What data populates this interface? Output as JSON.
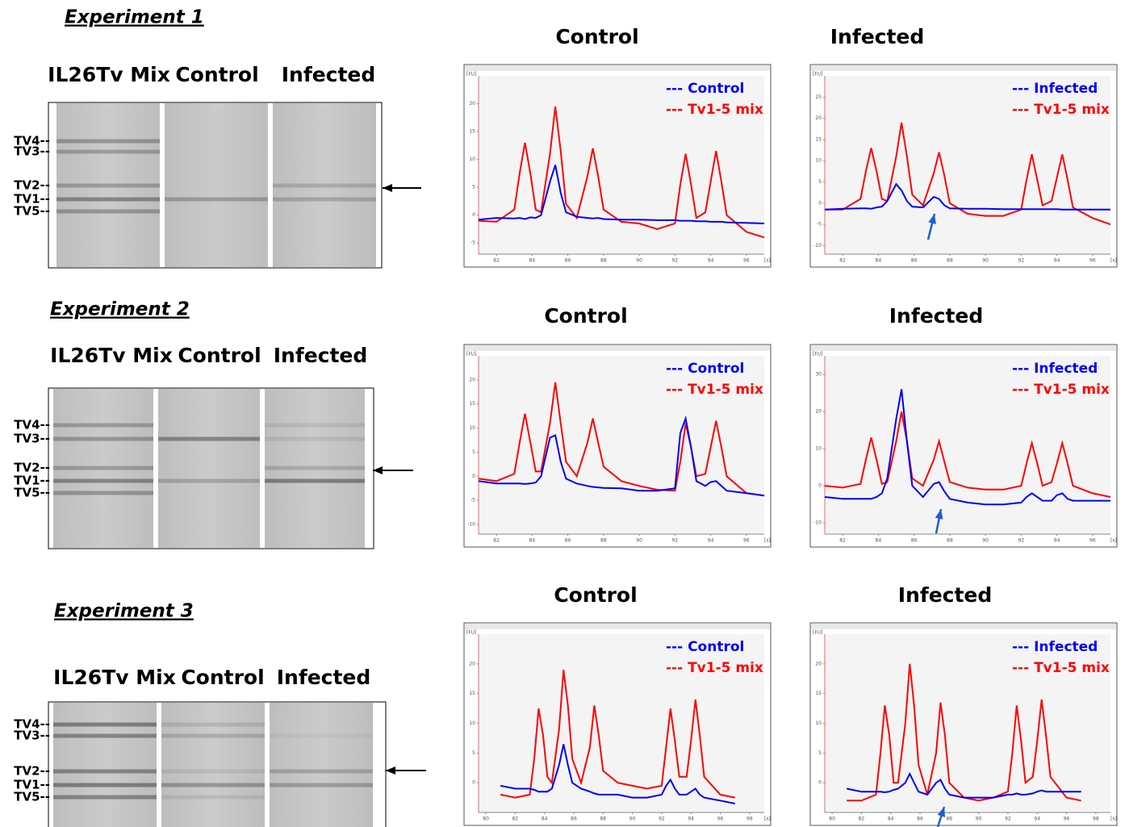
{
  "gels": [
    {
      "title": "Experiment 1",
      "lanes": [
        "IL26Tv Mix",
        "Control",
        "Infected"
      ],
      "band_labels": [
        "TV4--",
        "TV3--",
        "TV2--",
        "TV1--",
        "TV5--"
      ]
    },
    {
      "title": "Experiment 2",
      "lanes": [
        "IL26Tv Mix",
        "Control",
        "Infected"
      ],
      "band_labels": [
        "TV4--",
        "TV3--",
        "TV2--",
        "TV1--",
        "TV5--"
      ]
    },
    {
      "title": "Experiment 3",
      "lanes": [
        "IL26Tv Mix",
        "Control",
        "Infected"
      ],
      "band_labels": [
        "TV4--",
        "TV3--",
        "TV2--",
        "TV1--",
        "TV5--"
      ]
    }
  ],
  "chart_data": [
    {
      "type": "line",
      "title": "Control",
      "ylabel": "[FU]",
      "xlabel": "[s]",
      "xlim": [
        81,
        97
      ],
      "ylim": [
        -7,
        25
      ],
      "xticks": [
        82,
        84,
        86,
        88,
        90,
        92,
        94,
        96
      ],
      "yticks": [
        -5,
        0,
        5,
        10,
        15,
        20
      ],
      "x": [
        81,
        82,
        83,
        83.3,
        83.6,
        83.9,
        84.2,
        84.5,
        85.0,
        85.3,
        85.6,
        85.9,
        86.5,
        87.1,
        87.4,
        87.7,
        88.0,
        89,
        90,
        91,
        92,
        92.3,
        92.6,
        92.9,
        93.2,
        93.7,
        94.0,
        94.3,
        94.6,
        94.9,
        96,
        97
      ],
      "series": [
        {
          "name": "--- Control",
          "color": "#0000ff",
          "values": [
            -0.8,
            -0.5,
            -0.6,
            -0.5,
            -0.7,
            -0.4,
            -0.5,
            0,
            6,
            9,
            4,
            0.5,
            -0.3,
            -0.5,
            -0.6,
            -0.5,
            -0.7,
            -0.8,
            -0.8,
            -0.9,
            -0.9,
            -1,
            -1,
            -1,
            -1.1,
            -1.1,
            -1.2,
            -1.2,
            -1.2,
            -1.3,
            -1.4,
            -1.5
          ]
        },
        {
          "name": "--- Tv1-5 mix",
          "color": "#ff0000",
          "values": [
            -1,
            -1.2,
            1,
            7.5,
            13,
            7.5,
            1,
            0.5,
            11,
            19.5,
            11.5,
            2,
            -0.5,
            7,
            12,
            7,
            1,
            -1.2,
            -1.5,
            -2.5,
            -1.5,
            5.5,
            11,
            5.5,
            -0.5,
            0.5,
            6,
            11.5,
            6,
            0,
            -3,
            -4
          ]
        }
      ]
    },
    {
      "type": "line",
      "title": "Infected",
      "ylabel": "[FU]",
      "xlabel": "[s]",
      "xlim": [
        81,
        97
      ],
      "ylim": [
        -12,
        30
      ],
      "xticks": [
        82,
        84,
        86,
        88,
        90,
        92,
        94,
        96
      ],
      "yticks": [
        -10,
        -5,
        0,
        5,
        10,
        15,
        20,
        25
      ],
      "x": [
        81,
        82,
        83,
        83.3,
        83.6,
        83.9,
        84.2,
        84.5,
        85.0,
        85.3,
        85.6,
        85.9,
        86.5,
        87.1,
        87.4,
        87.7,
        88.0,
        89,
        90,
        91,
        92,
        92.3,
        92.6,
        92.9,
        93.2,
        93.7,
        94.0,
        94.3,
        94.6,
        94.9,
        96,
        97
      ],
      "series": [
        {
          "name": "--- Infected",
          "color": "#0000ff",
          "values": [
            -1.5,
            -1.3,
            -1.2,
            -1.2,
            -1.3,
            -1,
            -0.8,
            0.5,
            4.5,
            3,
            0.5,
            -0.8,
            -1,
            1.5,
            1,
            -0.5,
            -1.2,
            -1.3,
            -1.3,
            -1.4,
            -1.4,
            -1.4,
            -1.4,
            -1.4,
            -1.4,
            -1.4,
            -1.4,
            -1.5,
            -1.5,
            -1.5,
            -1.5,
            -1.5
          ]
        },
        {
          "name": "--- Tv1-5 mix",
          "color": "#ff0000",
          "values": [
            -1.5,
            -1.5,
            1,
            7.5,
            13,
            7.5,
            1,
            0.5,
            11,
            19,
            11,
            2,
            -0.5,
            7,
            12,
            6.5,
            0,
            -2.5,
            -3,
            -3,
            -1.5,
            5.5,
            11.5,
            5.5,
            -0.5,
            0.5,
            6,
            11.5,
            5.5,
            -1,
            -3.5,
            -5
          ]
        }
      ]
    },
    {
      "type": "line",
      "title": "Control",
      "ylabel": "[FU]",
      "xlabel": "[s]",
      "xlim": [
        81,
        97
      ],
      "ylim": [
        -12,
        25
      ],
      "xticks": [
        82,
        84,
        86,
        88,
        90,
        92,
        94,
        96
      ],
      "yticks": [
        -10,
        -5,
        0,
        5,
        10,
        15,
        20
      ],
      "x": [
        81,
        82,
        83,
        83.3,
        83.6,
        83.9,
        84.2,
        84.5,
        85.0,
        85.3,
        85.6,
        85.9,
        86.5,
        87.1,
        87.4,
        87.7,
        88.0,
        89,
        90,
        91,
        92,
        92.3,
        92.6,
        92.9,
        93.2,
        93.7,
        94.0,
        94.3,
        94.6,
        94.9,
        96,
        97
      ],
      "series": [
        {
          "name": "--- Control",
          "color": "#0000ff",
          "values": [
            -1,
            -1.5,
            -1.5,
            -1.5,
            -1.6,
            -1.5,
            -1.3,
            0,
            8,
            8.5,
            3,
            -0.5,
            -1.5,
            -2,
            -2.2,
            -2.3,
            -2.4,
            -2.5,
            -3,
            -3,
            -2.5,
            9,
            12,
            6,
            -1,
            -2,
            -1.2,
            -1,
            -2,
            -3,
            -3.5,
            -4
          ]
        },
        {
          "name": "--- Tv1-5 mix",
          "color": "#ff0000",
          "values": [
            -0.5,
            -1,
            0.5,
            7,
            13,
            7,
            1,
            1,
            11,
            19.5,
            11,
            3,
            0,
            7,
            12,
            7,
            2,
            -1,
            -2,
            -2.8,
            -3,
            3,
            11,
            6,
            0,
            0.5,
            6,
            11.5,
            6,
            0,
            -3.5,
            -4
          ]
        }
      ]
    },
    {
      "type": "line",
      "title": "Infected",
      "ylabel": "[FU]",
      "xlabel": "[s]",
      "xlim": [
        81,
        97
      ],
      "ylim": [
        -13,
        35
      ],
      "xticks": [
        82,
        84,
        86,
        88,
        90,
        92,
        94,
        96
      ],
      "yticks": [
        -10,
        0,
        10,
        20,
        30
      ],
      "x": [
        81,
        82,
        83,
        83.3,
        83.6,
        83.9,
        84.2,
        84.5,
        85.0,
        85.3,
        85.6,
        85.9,
        86.5,
        87.1,
        87.4,
        87.7,
        88.0,
        89,
        90,
        91,
        92,
        92.3,
        92.6,
        92.9,
        93.2,
        93.7,
        94.0,
        94.3,
        94.6,
        94.9,
        96,
        97
      ],
      "series": [
        {
          "name": "--- Infected",
          "color": "#0000ff",
          "values": [
            -3,
            -3.5,
            -3.5,
            -3.5,
            -3.5,
            -3,
            -2,
            2,
            18,
            26,
            12,
            0,
            -3,
            0.5,
            1,
            -1.5,
            -3.5,
            -4.5,
            -5,
            -5,
            -4.5,
            -3,
            -2,
            -3,
            -4,
            -4,
            -2.5,
            -2,
            -3.5,
            -4,
            -4,
            -4
          ]
        },
        {
          "name": "--- Tv1-5 mix",
          "color": "#ff0000",
          "values": [
            0,
            -0.5,
            0.5,
            7,
            13,
            7,
            0.5,
            1,
            12,
            20,
            12,
            2,
            0,
            7,
            12,
            6.5,
            1,
            -0.5,
            -1,
            -1,
            0,
            6,
            11.5,
            6,
            0,
            1,
            6,
            11.5,
            6,
            0,
            -2,
            -3
          ]
        }
      ]
    },
    {
      "type": "line",
      "title": "Control",
      "ylabel": "[FU]",
      "xlabel": "[s]",
      "xlim": [
        79.5,
        99
      ],
      "ylim": [
        -5,
        25
      ],
      "xticks": [
        80,
        82,
        84,
        86,
        88,
        90,
        92,
        94,
        96,
        98
      ],
      "yticks": [
        0,
        5,
        10,
        15,
        20
      ],
      "x": [
        81,
        82,
        83,
        83.3,
        83.6,
        83.9,
        84.2,
        84.5,
        85.0,
        85.3,
        85.6,
        85.9,
        86.5,
        87.1,
        87.4,
        87.7,
        88.0,
        89,
        90,
        91,
        92,
        92.3,
        92.6,
        92.9,
        93.2,
        93.7,
        94.0,
        94.3,
        94.6,
        94.9,
        96,
        97
      ],
      "series": [
        {
          "name": "--- Control",
          "color": "#0000ff",
          "values": [
            -0.5,
            -1,
            -1,
            -1.2,
            -1.5,
            -1.5,
            -1.5,
            -1,
            3,
            6.5,
            3,
            0,
            -1,
            -1.5,
            -1.8,
            -2,
            -2,
            -2,
            -2.5,
            -2.5,
            -2,
            -0.5,
            0.5,
            -1,
            -2,
            -2,
            -1.5,
            -1,
            -2,
            -2.5,
            -3,
            -3.5
          ]
        },
        {
          "name": "--- Tv1-5 mix",
          "color": "#ff0000",
          "values": [
            -2,
            -2.5,
            -2,
            4,
            12.5,
            8,
            1,
            0,
            9,
            19,
            13,
            4,
            0,
            6,
            13,
            8,
            2,
            0,
            -0.5,
            -1,
            -0.5,
            6,
            12.5,
            7,
            1,
            1,
            7,
            14,
            8,
            1,
            -2,
            -2.5
          ]
        }
      ]
    },
    {
      "type": "line",
      "title": "Infected",
      "ylabel": "[FU]",
      "xlabel": "[s]",
      "xlim": [
        79.5,
        99
      ],
      "ylim": [
        -5,
        25
      ],
      "xticks": [
        80,
        82,
        84,
        86,
        88,
        90,
        92,
        94,
        96,
        98
      ],
      "yticks": [
        0,
        5,
        10,
        15,
        20
      ],
      "x": [
        81,
        82,
        83,
        83.3,
        83.6,
        83.9,
        84.2,
        84.5,
        85.0,
        85.3,
        85.6,
        85.9,
        86.5,
        87.1,
        87.4,
        87.7,
        88.0,
        89,
        90,
        91,
        92,
        92.3,
        92.6,
        92.9,
        93.2,
        93.7,
        94.0,
        94.3,
        94.6,
        94.9,
        96,
        97
      ],
      "series": [
        {
          "name": "--- Infected",
          "color": "#0000ff",
          "values": [
            -1,
            -1.5,
            -1.5,
            -1.5,
            -1.6,
            -1.5,
            -1.2,
            -1,
            0,
            1.5,
            0,
            -1.5,
            -2,
            0,
            0.5,
            -1,
            -2,
            -2.5,
            -2.5,
            -2.5,
            -2,
            -2,
            -1.8,
            -2,
            -2,
            -1.8,
            -1.5,
            -1.3,
            -1.5,
            -1.5,
            -1.5,
            -1.5
          ]
        },
        {
          "name": "--- Tv1-5 mix",
          "color": "#ff0000",
          "values": [
            -3,
            -3,
            -2,
            5,
            13,
            8,
            0,
            0,
            10,
            20,
            13,
            3,
            -2,
            5,
            13.5,
            8,
            0,
            -2.5,
            -3,
            -2.5,
            -1.5,
            5,
            13,
            7,
            0,
            1,
            7,
            14,
            8,
            1,
            -2.5,
            -3
          ]
        }
      ]
    }
  ]
}
